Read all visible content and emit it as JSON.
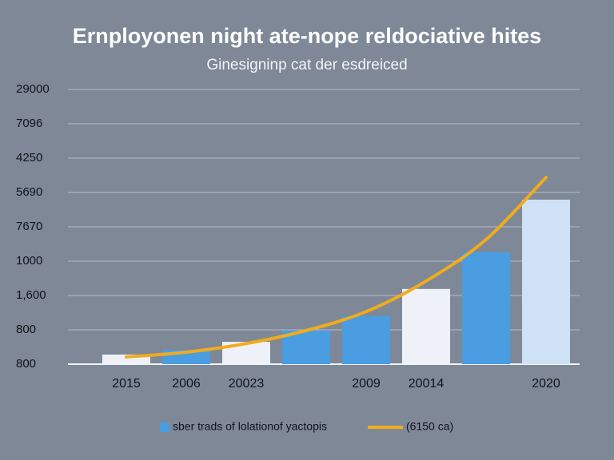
{
  "chart_data": {
    "type": "bar",
    "title": "Ernployonen night ate-nope reldociative hites",
    "subtitle": "Ginesigninp cat der esdreiced",
    "categories": [
      "2015",
      "2006",
      "20023",
      null,
      "2009",
      "20014",
      null,
      "2020"
    ],
    "ylim": [
      0,
      8
    ],
    "yticks": [
      {
        "value": 0,
        "label": "800"
      },
      {
        "value": 1,
        "label": "800"
      },
      {
        "value": 2,
        "label": "1,600"
      },
      {
        "value": 3,
        "label": "1000"
      },
      {
        "value": 4,
        "label": "7670"
      },
      {
        "value": 5,
        "label": "5690"
      },
      {
        "value": 6,
        "label": "4250"
      },
      {
        "value": 7,
        "label": "7096"
      },
      {
        "value": 8,
        "label": "29000"
      }
    ],
    "grid": true,
    "series": [
      {
        "name": "sber trads of lolationof yactopis",
        "type": "bar",
        "color": "#4a9de0",
        "colors": [
          "#eef1f8",
          "#4a9de0",
          "#eef1f8",
          "#4a9de0",
          "#4a9de0",
          "#eef1f8",
          "#4a9de0",
          "#cfe2f5"
        ],
        "values": [
          0.28,
          0.42,
          0.65,
          0.98,
          1.4,
          2.19,
          3.26,
          4.79
        ]
      },
      {
        "name": "(6150 ca)",
        "type": "line",
        "color": "#f0ac1e",
        "values": [
          0.21,
          0.35,
          0.6,
          0.98,
          1.53,
          2.42,
          3.63,
          5.44
        ]
      }
    ]
  }
}
